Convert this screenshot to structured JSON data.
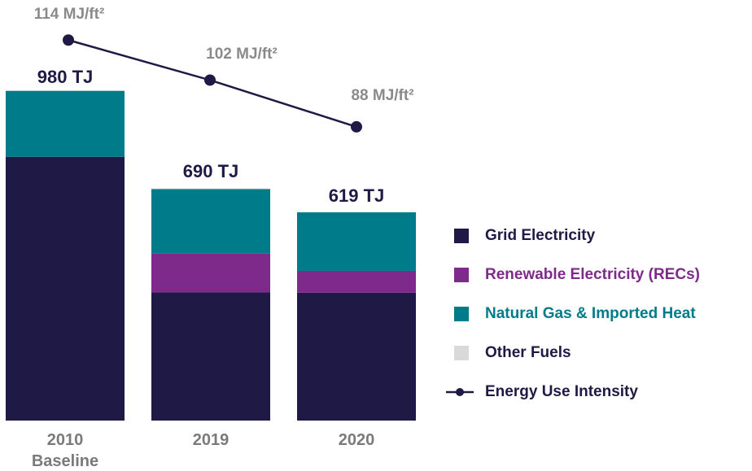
{
  "chart_data": {
    "type": "bar",
    "stacked": true,
    "categories": [
      "2010 Baseline",
      "2019",
      "2020"
    ],
    "ylim": [
      0,
      1250
    ],
    "y2lim": [
      0,
      126
    ],
    "totals": [
      980,
      690,
      619
    ],
    "total_labels": [
      "980 TJ",
      "690 TJ",
      "619 TJ"
    ],
    "series": [
      {
        "name": "Grid Electricity",
        "color": "#1f1a45",
        "values": [
          784,
          381,
          380
        ]
      },
      {
        "name": "Renewable Electricity (RECs)",
        "color": "#7e2a8a",
        "values": [
          0,
          115,
          65
        ]
      },
      {
        "name": "Natural Gas & Imported Heat",
        "color": "#007b8a",
        "values": [
          196,
          192,
          174
        ]
      },
      {
        "name": "Other Fuels",
        "color": "#d9d9db",
        "values": [
          0,
          2,
          0
        ]
      },
      {
        "name": "Energy Use Intensity",
        "color": "#1f1a45",
        "type": "line",
        "axis": "y2",
        "values": [
          114,
          102,
          88
        ],
        "value_labels": [
          "114 MJ/ft²",
          "102 MJ/ft²",
          "88 MJ/ft²"
        ]
      }
    ]
  }
}
